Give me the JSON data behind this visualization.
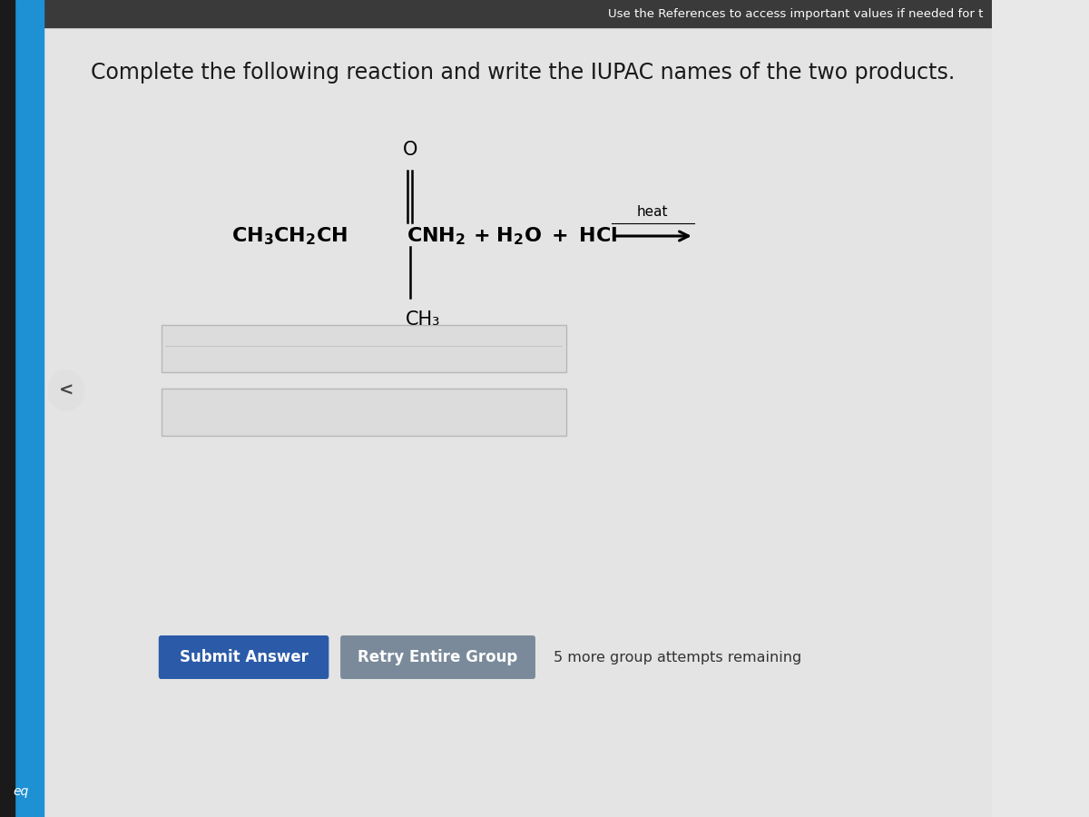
{
  "bg_color": "#e8e8e8",
  "content_bg": "#e8e8e8",
  "title_text": "Complete the following reaction and write the IUPAC names of the two products.",
  "header_text": "Use the References to access important values if needed for t",
  "heat_label": "heat",
  "ch3_sub": "CH₃",
  "carbonyl_o": "O",
  "submit_btn_text": "Submit Answer",
  "submit_btn_color": "#2B5BA8",
  "retry_btn_text": "Retry Entire Group",
  "retry_btn_color": "#7a8a9a",
  "attempts_text": "5 more group attempts remaining",
  "input_box_color": "#dcdcdc",
  "input_box_edge": "#cccccc",
  "left_dark_strip_color": "#1a1a1a",
  "left_blue_strip_color": "#1e90d4",
  "left_label": "eq",
  "nav_circle_color": "#e0e0e0",
  "header_bg": "#3a3a3a",
  "title_fontsize": 17,
  "rxn_fontsize": 16
}
